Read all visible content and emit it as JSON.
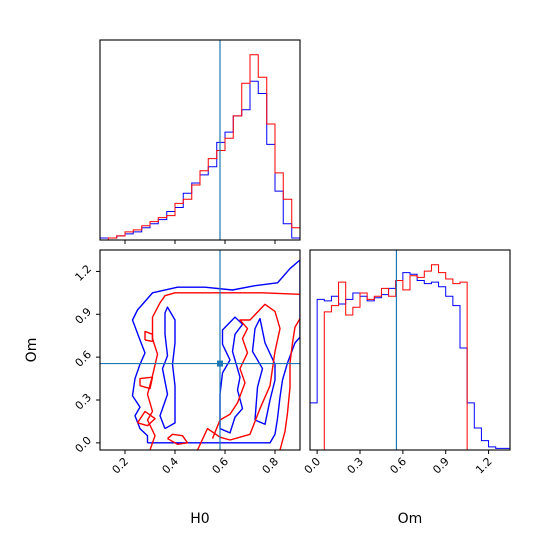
{
  "chart_data": {
    "type": "corner",
    "params": [
      "H0",
      "Om"
    ],
    "truth": {
      "H0": 0.58,
      "Om": 0.555
    },
    "colors": {
      "series_a": "#0000ff",
      "series_b": "#ff0000",
      "truth": "#1f77b4"
    },
    "xlabels": {
      "h0": "H0",
      "om": "Om"
    },
    "ylabel_left": "Om",
    "panels": [
      {
        "id": "h0-hist",
        "type": "histogram",
        "xlim": [
          0.1,
          0.9
        ],
        "bin_edges": [
          0.1,
          0.133,
          0.167,
          0.2,
          0.233,
          0.267,
          0.3,
          0.333,
          0.367,
          0.4,
          0.433,
          0.467,
          0.5,
          0.533,
          0.567,
          0.6,
          0.633,
          0.667,
          0.7,
          0.733,
          0.767,
          0.8,
          0.833,
          0.867,
          0.9
        ],
        "series": [
          {
            "color": "blue",
            "values": [
              1,
              1,
              2,
              3,
              4,
              6,
              8,
              10,
              14,
              16,
              23,
              28,
              32,
              36,
              48,
              53,
              61,
              64,
              78,
              72,
              47,
              24,
              8,
              1
            ]
          },
          {
            "color": "red",
            "values": [
              0,
              1,
              2,
              4,
              5,
              7,
              9,
              11,
              12,
              18,
              20,
              27,
              34,
              40,
              44,
              50,
              61,
              77,
              91,
              80,
              57,
              33,
              20,
              6
            ]
          }
        ]
      },
      {
        "id": "om-hist",
        "type": "histogram",
        "xlim": [
          -0.05,
          1.35
        ],
        "bin_edges": [
          -0.05,
          0.0,
          0.05,
          0.1,
          0.15,
          0.2,
          0.25,
          0.3,
          0.35,
          0.4,
          0.45,
          0.5,
          0.55,
          0.6,
          0.65,
          0.7,
          0.75,
          0.8,
          0.85,
          0.9,
          0.95,
          1.0,
          1.05,
          1.1,
          1.15,
          1.2,
          1.25,
          1.3,
          1.35
        ],
        "series": [
          {
            "color": "blue",
            "values": [
              30,
              96,
              95,
              98,
              93,
              96,
              100,
              98,
              95,
              97,
              99,
              103,
              108,
              113,
              112,
              108,
              106,
              107,
              104,
              98,
              92,
              65,
              30,
              14,
              6,
              2,
              1,
              1
            ]
          },
          {
            "color": "red",
            "values": [
              0,
              0,
              88,
              92,
              107,
              86,
              91,
              100,
              96,
              98,
              103,
              98,
              108,
              102,
              111,
              110,
              114,
              118,
              113,
              109,
              106,
              107,
              0,
              0,
              0,
              0,
              0,
              0
            ]
          }
        ]
      },
      {
        "id": "joint",
        "type": "contour",
        "xlim": [
          0.1,
          0.9
        ],
        "ylim": [
          -0.05,
          1.35
        ],
        "blue_contours": [
          [
            [
              0.29,
              0.0
            ],
            [
              0.29,
              0.05
            ],
            [
              0.26,
              0.1
            ],
            [
              0.24,
              0.19
            ],
            [
              0.26,
              0.25
            ],
            [
              0.23,
              0.33
            ],
            [
              0.24,
              0.45
            ],
            [
              0.26,
              0.55
            ],
            [
              0.28,
              0.63
            ],
            [
              0.26,
              0.72
            ],
            [
              0.23,
              0.86
            ],
            [
              0.25,
              0.93
            ],
            [
              0.31,
              1.05
            ],
            [
              0.41,
              1.09
            ],
            [
              0.52,
              1.09
            ],
            [
              0.63,
              1.07
            ],
            [
              0.72,
              1.1
            ],
            [
              0.81,
              1.12
            ],
            [
              0.86,
              1.22
            ],
            [
              0.9,
              1.28
            ],
            [
              0.9,
              0.74
            ],
            [
              0.88,
              0.7
            ],
            [
              0.85,
              0.56
            ],
            [
              0.83,
              0.44
            ],
            [
              0.82,
              0.32
            ],
            [
              0.81,
              0.17
            ],
            [
              0.8,
              0.06
            ],
            [
              0.78,
              0.0
            ],
            [
              0.29,
              0.0
            ]
          ],
          [
            [
              0.36,
              0.1
            ],
            [
              0.34,
              0.19
            ],
            [
              0.37,
              0.34
            ],
            [
              0.35,
              0.52
            ],
            [
              0.37,
              0.61
            ],
            [
              0.36,
              0.76
            ],
            [
              0.36,
              0.91
            ],
            [
              0.37,
              0.95
            ],
            [
              0.4,
              0.86
            ],
            [
              0.4,
              0.7
            ],
            [
              0.39,
              0.55
            ],
            [
              0.4,
              0.4
            ],
            [
              0.4,
              0.26
            ],
            [
              0.4,
              0.14
            ],
            [
              0.36,
              0.1
            ]
          ],
          [
            [
              0.58,
              0.1
            ],
            [
              0.62,
              0.07
            ],
            [
              0.64,
              0.18
            ],
            [
              0.67,
              0.24
            ],
            [
              0.65,
              0.37
            ],
            [
              0.66,
              0.46
            ],
            [
              0.63,
              0.64
            ],
            [
              0.64,
              0.76
            ],
            [
              0.67,
              0.83
            ],
            [
              0.64,
              0.88
            ],
            [
              0.59,
              0.79
            ],
            [
              0.59,
              0.69
            ],
            [
              0.62,
              0.58
            ],
            [
              0.59,
              0.49
            ],
            [
              0.58,
              0.34
            ],
            [
              0.58,
              0.1
            ]
          ],
          [
            [
              0.72,
              0.16
            ],
            [
              0.76,
              0.13
            ],
            [
              0.78,
              0.3
            ],
            [
              0.8,
              0.44
            ],
            [
              0.8,
              0.55
            ],
            [
              0.76,
              0.7
            ],
            [
              0.74,
              0.87
            ],
            [
              0.72,
              0.8
            ],
            [
              0.71,
              0.64
            ],
            [
              0.75,
              0.52
            ],
            [
              0.73,
              0.39
            ],
            [
              0.72,
              0.16
            ]
          ]
        ],
        "red_contours": [
          [
            [
              0.3,
              -0.05
            ],
            [
              0.32,
              0.05
            ],
            [
              0.29,
              0.16
            ],
            [
              0.31,
              0.22
            ],
            [
              0.29,
              0.34
            ],
            [
              0.31,
              0.47
            ],
            [
              0.33,
              0.62
            ],
            [
              0.31,
              0.73
            ],
            [
              0.31,
              0.88
            ],
            [
              0.34,
              0.98
            ],
            [
              0.36,
              1.03
            ],
            [
              0.4,
              1.05
            ],
            [
              0.52,
              1.05
            ],
            [
              0.62,
              1.05
            ],
            [
              0.75,
              1.05
            ],
            [
              0.9,
              1.04
            ]
          ],
          [
            [
              0.49,
              -0.05
            ],
            [
              0.53,
              0.1
            ],
            [
              0.58,
              0.04
            ],
            [
              0.62,
              0.02
            ],
            [
              0.66,
              0.04
            ],
            [
              0.7,
              0.06
            ],
            [
              0.74,
              0.24
            ],
            [
              0.78,
              0.4
            ],
            [
              0.8,
              0.64
            ],
            [
              0.82,
              0.8
            ],
            [
              0.8,
              0.92
            ],
            [
              0.76,
              0.97
            ],
            [
              0.7,
              0.86
            ],
            [
              0.66,
              0.86
            ],
            [
              0.69,
              0.8
            ],
            [
              0.67,
              0.73
            ],
            [
              0.69,
              0.63
            ],
            [
              0.66,
              0.52
            ],
            [
              0.68,
              0.42
            ],
            [
              0.65,
              0.28
            ],
            [
              0.62,
              0.2
            ],
            [
              0.58,
              0.16
            ],
            [
              0.55,
              0.03
            ]
          ],
          [
            [
              0.82,
              -0.05
            ],
            [
              0.84,
              0.08
            ],
            [
              0.85,
              0.21
            ],
            [
              0.86,
              0.39
            ],
            [
              0.86,
              0.56
            ],
            [
              0.87,
              0.7
            ],
            [
              0.88,
              0.81
            ],
            [
              0.9,
              0.87
            ]
          ],
          [
            [
              0.37,
              0.03
            ],
            [
              0.41,
              -0.01
            ],
            [
              0.45,
              0.0
            ],
            [
              0.43,
              0.05
            ],
            [
              0.39,
              0.06
            ],
            [
              0.37,
              0.03
            ]
          ],
          [
            [
              0.25,
              0.14
            ],
            [
              0.29,
              0.12
            ],
            [
              0.32,
              0.17
            ],
            [
              0.28,
              0.22
            ],
            [
              0.25,
              0.14
            ]
          ],
          [
            [
              0.26,
              0.4
            ],
            [
              0.3,
              0.38
            ],
            [
              0.31,
              0.46
            ],
            [
              0.26,
              0.45
            ],
            [
              0.26,
              0.4
            ]
          ],
          [
            [
              0.28,
              0.72
            ],
            [
              0.31,
              0.71
            ],
            [
              0.31,
              0.76
            ],
            [
              0.28,
              0.78
            ],
            [
              0.28,
              0.72
            ]
          ]
        ]
      }
    ],
    "ticks": {
      "h0": [
        0.2,
        0.4,
        0.6,
        0.8
      ],
      "h0_labels": [
        "0.2",
        "0.4",
        "0.6",
        "0.8"
      ],
      "om": [
        0.0,
        0.3,
        0.6,
        0.9,
        1.2
      ],
      "om_labels": [
        "0.0",
        "0.3",
        "0.6",
        "0.9",
        "1.2"
      ]
    }
  }
}
